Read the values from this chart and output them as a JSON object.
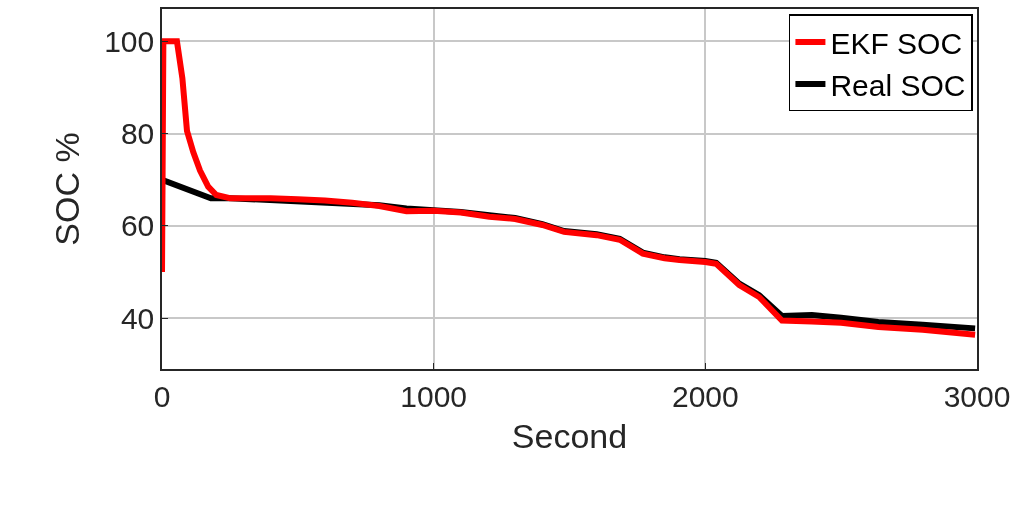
{
  "chart_data": {
    "type": "line",
    "xlabel": "Second",
    "ylabel": "SOC %",
    "xlim": [
      0,
      3000
    ],
    "xticks": [
      0,
      1000,
      2000,
      3000
    ],
    "ylim": [
      29,
      107
    ],
    "yticks": [
      40,
      60,
      80,
      100
    ],
    "grid": true,
    "legend": "top right",
    "line_style": "solid",
    "marker": "none",
    "series": [
      {
        "name": "EKF SOC",
        "color": "#ff0000",
        "x": [
          0,
          5,
          20,
          55,
          75,
          92,
          115,
          140,
          170,
          200,
          250,
          400,
          500,
          600,
          700,
          800,
          900,
          1000,
          1100,
          1205,
          1300,
          1400,
          1480,
          1600,
          1685,
          1770,
          1850,
          1905,
          2000,
          2040,
          2125,
          2198,
          2282,
          2392,
          2500,
          2637,
          2800,
          2993
        ],
        "values": [
          50,
          100,
          100,
          100,
          92,
          80.6,
          76,
          72,
          68.5,
          66.7,
          66,
          66,
          65.8,
          65.5,
          65,
          64.3,
          63.2,
          63.3,
          62.9,
          62,
          61.5,
          60.2,
          58.7,
          58,
          57,
          54,
          53,
          52.6,
          52.2,
          51.8,
          47.2,
          44.6,
          39.5,
          39.3,
          39,
          38.1,
          37.5,
          36.4
        ]
      },
      {
        "name": "Real SOC",
        "color": "#000000",
        "x": [
          0,
          180,
          250,
          800,
          900,
          1000,
          1100,
          1205,
          1300,
          1400,
          1480,
          1600,
          1685,
          1770,
          1850,
          1905,
          2000,
          2040,
          2125,
          2198,
          2282,
          2392,
          2500,
          2637,
          2800,
          2993
        ],
        "values": [
          70,
          66,
          66,
          64.5,
          63.8,
          63.4,
          63,
          62.3,
          61.7,
          60.4,
          58.9,
          58.2,
          57.2,
          54.2,
          53.2,
          52.8,
          52.4,
          52,
          47.5,
          45,
          40.5,
          40.7,
          40.1,
          39.2,
          38.6,
          37.8
        ]
      }
    ]
  }
}
